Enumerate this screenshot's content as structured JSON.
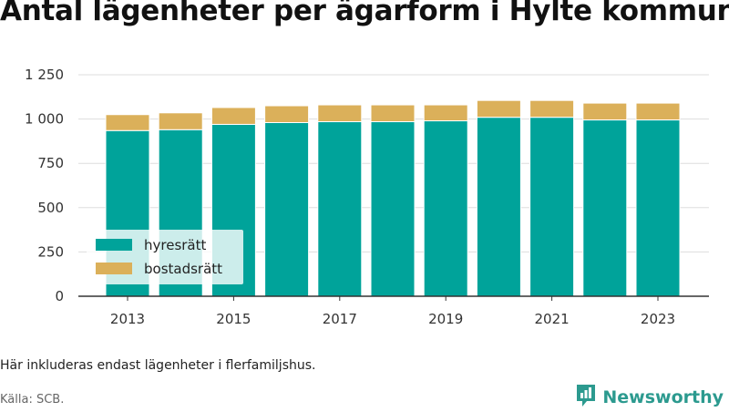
{
  "title": "Antal lägenheter per ägarform i Hylte kommun",
  "note": "Här inkluderas endast lägenheter i flerfamiljshus.",
  "source": "Källa: SCB.",
  "brand": {
    "name": "Newsworthy",
    "icon": "newsworthy-logo-icon",
    "color": "#2c9a8f"
  },
  "chart_data": {
    "type": "bar",
    "stacked": true,
    "categories": [
      "2013",
      "2014",
      "2015",
      "2016",
      "2017",
      "2018",
      "2019",
      "2020",
      "2021",
      "2022",
      "2023"
    ],
    "x_tick_labels": [
      "2013",
      "2015",
      "2017",
      "2019",
      "2021",
      "2023"
    ],
    "series": [
      {
        "name": "hyresrätt",
        "color": "#00a39a",
        "values": [
          935,
          940,
          970,
          980,
          985,
          985,
          990,
          1010,
          1010,
          995,
          995
        ]
      },
      {
        "name": "bostadsrätt",
        "color": "#dbb05a",
        "values": [
          90,
          95,
          95,
          95,
          95,
          95,
          90,
          95,
          95,
          95,
          95
        ]
      }
    ],
    "y_ticks": [
      0,
      250,
      500,
      750,
      1000,
      1250
    ],
    "y_tick_labels": [
      "0",
      "250",
      "500",
      "750",
      "1 000",
      "1 250"
    ],
    "ylim": [
      0,
      1250
    ],
    "xlabel": "",
    "ylabel": "",
    "grid": true,
    "legend_position": "bottom-left"
  }
}
